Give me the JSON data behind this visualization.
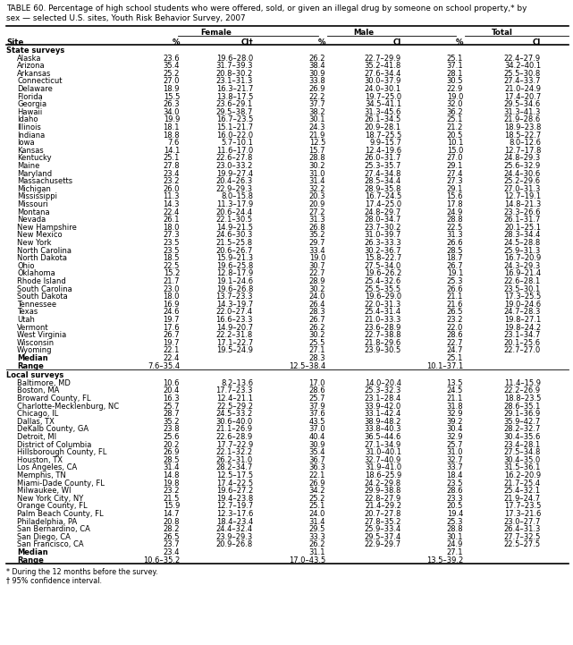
{
  "title_line1": "TABLE 60. Percentage of high school students who were offered, sold, or given an illegal drug by someone on school property,* by",
  "title_line2": "sex — selected U.S. sites, Youth Risk Behavior Survey, 2007",
  "state_data": [
    [
      "Alaska",
      "23.6",
      "19.6–28.0",
      "26.2",
      "22.7–29.9",
      "25.1",
      "22.4–27.9"
    ],
    [
      "Arizona",
      "35.4",
      "31.7–39.3",
      "38.4",
      "35.2–41.8",
      "37.1",
      "34.2–40.1"
    ],
    [
      "Arkansas",
      "25.2",
      "20.8–30.2",
      "30.9",
      "27.6–34.4",
      "28.1",
      "25.5–30.8"
    ],
    [
      "Connecticut",
      "27.0",
      "23.1–31.3",
      "33.8",
      "30.0–37.9",
      "30.5",
      "27.4–33.7"
    ],
    [
      "Delaware",
      "18.9",
      "16.3–21.7",
      "26.9",
      "24.0–30.1",
      "22.9",
      "21.0–24.9"
    ],
    [
      "Florida",
      "15.5",
      "13.8–17.5",
      "22.2",
      "19.7–25.0",
      "19.0",
      "17.4–20.7"
    ],
    [
      "Georgia",
      "26.3",
      "23.6–29.1",
      "37.7",
      "34.5–41.1",
      "32.0",
      "29.5–34.6"
    ],
    [
      "Hawaii",
      "34.0",
      "29.5–38.7",
      "38.2",
      "31.3–45.6",
      "36.2",
      "31.3–41.3"
    ],
    [
      "Idaho",
      "19.9",
      "16.7–23.5",
      "30.1",
      "26.1–34.5",
      "25.1",
      "21.9–28.6"
    ],
    [
      "Illinois",
      "18.1",
      "15.1–21.7",
      "24.3",
      "20.9–28.1",
      "21.2",
      "18.9–23.8"
    ],
    [
      "Indiana",
      "18.8",
      "16.0–22.0",
      "21.9",
      "18.7–25.5",
      "20.5",
      "18.5–22.7"
    ],
    [
      "Iowa",
      "7.6",
      "5.7–10.1",
      "12.5",
      "9.9–15.7",
      "10.1",
      "8.0–12.6"
    ],
    [
      "Kansas",
      "14.1",
      "11.6–17.0",
      "15.7",
      "12.4–19.6",
      "15.0",
      "12.7–17.8"
    ],
    [
      "Kentucky",
      "25.1",
      "22.6–27.8",
      "28.8",
      "26.0–31.7",
      "27.0",
      "24.8–29.3"
    ],
    [
      "Maine",
      "27.8",
      "23.0–33.2",
      "30.2",
      "25.3–35.7",
      "29.1",
      "25.6–32.9"
    ],
    [
      "Maryland",
      "23.4",
      "19.9–27.4",
      "31.0",
      "27.4–34.8",
      "27.4",
      "24.4–30.6"
    ],
    [
      "Massachusetts",
      "23.2",
      "20.4–26.3",
      "31.4",
      "28.5–34.4",
      "27.3",
      "25.2–29.6"
    ],
    [
      "Michigan",
      "26.0",
      "22.9–29.3",
      "32.2",
      "28.9–35.8",
      "29.1",
      "27.0–31.3"
    ],
    [
      "Mississippi",
      "11.3",
      "8.0–15.8",
      "20.3",
      "16.7–24.5",
      "15.6",
      "12.7–19.1"
    ],
    [
      "Missouri",
      "14.3",
      "11.3–17.9",
      "20.9",
      "17.4–25.0",
      "17.8",
      "14.8–21.3"
    ],
    [
      "Montana",
      "22.4",
      "20.6–24.4",
      "27.2",
      "24.8–29.7",
      "24.9",
      "23.3–26.6"
    ],
    [
      "Nevada",
      "26.1",
      "22.1–30.5",
      "31.3",
      "28.0–34.7",
      "28.8",
      "26.1–31.7"
    ],
    [
      "New Hampshire",
      "18.0",
      "14.9–21.5",
      "26.8",
      "23.7–30.2",
      "22.5",
      "20.1–25.1"
    ],
    [
      "New Mexico",
      "27.3",
      "24.6–30.3",
      "35.2",
      "31.0–39.7",
      "31.3",
      "28.3–34.4"
    ],
    [
      "New York",
      "23.5",
      "21.5–25.8",
      "29.7",
      "26.3–33.3",
      "26.6",
      "24.5–28.8"
    ],
    [
      "North Carolina",
      "23.5",
      "20.6–26.7",
      "33.4",
      "30.2–36.7",
      "28.5",
      "25.9–31.3"
    ],
    [
      "North Dakota",
      "18.5",
      "15.9–21.3",
      "19.0",
      "15.8–22.7",
      "18.7",
      "16.7–20.9"
    ],
    [
      "Ohio",
      "22.5",
      "19.6–25.8",
      "30.7",
      "27.5–34.0",
      "26.7",
      "24.3–29.3"
    ],
    [
      "Oklahoma",
      "15.2",
      "12.8–17.9",
      "22.7",
      "19.6–26.2",
      "19.1",
      "16.9–21.4"
    ],
    [
      "Rhode Island",
      "21.7",
      "19.1–24.6",
      "28.9",
      "25.4–32.6",
      "25.3",
      "22.6–28.1"
    ],
    [
      "South Carolina",
      "23.0",
      "19.6–26.8",
      "30.2",
      "25.5–35.5",
      "26.6",
      "23.5–30.1"
    ],
    [
      "South Dakota",
      "18.0",
      "13.7–23.3",
      "24.0",
      "19.6–29.0",
      "21.1",
      "17.3–25.5"
    ],
    [
      "Tennessee",
      "16.9",
      "14.3–19.7",
      "26.4",
      "22.0–31.3",
      "21.6",
      "19.0–24.6"
    ],
    [
      "Texas",
      "24.6",
      "22.0–27.4",
      "28.3",
      "25.4–31.4",
      "26.5",
      "24.7–28.3"
    ],
    [
      "Utah",
      "19.7",
      "16.6–23.3",
      "26.7",
      "21.0–33.3",
      "23.2",
      "19.8–27.1"
    ],
    [
      "Vermont",
      "17.6",
      "14.9–20.7",
      "26.2",
      "23.6–28.9",
      "22.0",
      "19.8–24.2"
    ],
    [
      "West Virginia",
      "26.7",
      "22.2–31.8",
      "30.2",
      "22.7–38.8",
      "28.6",
      "23.1–34.7"
    ],
    [
      "Wisconsin",
      "19.7",
      "17.1–22.7",
      "25.5",
      "21.8–29.6",
      "22.7",
      "20.1–25.6"
    ],
    [
      "Wyoming",
      "22.1",
      "19.5–24.9",
      "27.1",
      "23.9–30.5",
      "24.7",
      "22.7–27.0"
    ]
  ],
  "state_median": [
    "Median",
    "22.4",
    "",
    "28.3",
    "",
    "25.1",
    ""
  ],
  "state_range": [
    "Range",
    "7.6–35.4",
    "",
    "12.5–38.4",
    "",
    "10.1–37.1",
    ""
  ],
  "local_data": [
    [
      "Baltimore, MD",
      "10.6",
      "8.2–13.6",
      "17.0",
      "14.0–20.4",
      "13.5",
      "11.4–15.9"
    ],
    [
      "Boston, MA",
      "20.4",
      "17.7–23.3",
      "28.6",
      "25.3–32.3",
      "24.5",
      "22.2–26.9"
    ],
    [
      "Broward County, FL",
      "16.3",
      "12.4–21.1",
      "25.7",
      "23.1–28.4",
      "21.1",
      "18.8–23.5"
    ],
    [
      "Charlotte-Mecklenburg, NC",
      "25.7",
      "22.5–29.2",
      "37.9",
      "33.9–42.0",
      "31.8",
      "28.6–35.1"
    ],
    [
      "Chicago, IL",
      "28.7",
      "24.5–33.2",
      "37.6",
      "33.1–42.4",
      "32.9",
      "29.1–36.9"
    ],
    [
      "Dallas, TX",
      "35.2",
      "30.6–40.0",
      "43.5",
      "38.9–48.2",
      "39.2",
      "35.9–42.7"
    ],
    [
      "DeKalb County, GA",
      "23.8",
      "21.1–26.9",
      "37.0",
      "33.8–40.3",
      "30.4",
      "28.2–32.7"
    ],
    [
      "Detroit, MI",
      "25.6",
      "22.6–28.9",
      "40.4",
      "36.5–44.6",
      "32.9",
      "30.4–35.6"
    ],
    [
      "District of Columbia",
      "20.2",
      "17.7–22.9",
      "30.9",
      "27.1–34.9",
      "25.7",
      "23.4–28.1"
    ],
    [
      "Hillsborough County, FL",
      "26.9",
      "22.1–32.2",
      "35.4",
      "31.0–40.1",
      "31.0",
      "27.5–34.8"
    ],
    [
      "Houston, TX",
      "28.5",
      "26.2–31.0",
      "36.7",
      "32.7–40.9",
      "32.7",
      "30.4–35.0"
    ],
    [
      "Los Angeles, CA",
      "31.4",
      "28.2–34.7",
      "36.3",
      "31.9–41.0",
      "33.7",
      "31.5–36.1"
    ],
    [
      "Memphis, TN",
      "14.8",
      "12.5–17.5",
      "22.1",
      "18.6–25.9",
      "18.4",
      "16.2–20.9"
    ],
    [
      "Miami-Dade County, FL",
      "19.8",
      "17.4–22.5",
      "26.9",
      "24.2–29.8",
      "23.5",
      "21.7–25.4"
    ],
    [
      "Milwaukee, WI",
      "23.2",
      "19.6–27.2",
      "34.2",
      "29.9–38.8",
      "28.6",
      "25.4–32.1"
    ],
    [
      "New York City, NY",
      "21.5",
      "19.4–23.8",
      "25.2",
      "22.8–27.9",
      "23.3",
      "21.9–24.7"
    ],
    [
      "Orange County, FL",
      "15.9",
      "12.7–19.7",
      "25.1",
      "21.4–29.2",
      "20.5",
      "17.7–23.5"
    ],
    [
      "Palm Beach County, FL",
      "14.7",
      "12.3–17.6",
      "24.0",
      "20.7–27.8",
      "19.4",
      "17.3–21.6"
    ],
    [
      "Philadelphia, PA",
      "20.8",
      "18.4–23.4",
      "31.4",
      "27.8–35.2",
      "25.3",
      "23.0–27.7"
    ],
    [
      "San Bernardino, CA",
      "28.2",
      "24.4–32.4",
      "29.5",
      "25.9–33.4",
      "28.8",
      "26.4–31.3"
    ],
    [
      "San Diego, CA",
      "26.5",
      "23.9–29.3",
      "33.3",
      "29.5–37.4",
      "30.1",
      "27.7–32.5"
    ],
    [
      "San Francisco, CA",
      "23.7",
      "20.9–26.8",
      "26.2",
      "22.9–29.7",
      "24.9",
      "22.5–27.5"
    ]
  ],
  "local_median": [
    "Median",
    "23.4",
    "",
    "31.1",
    "",
    "27.1",
    ""
  ],
  "local_range": [
    "Range",
    "10.6–35.2",
    "",
    "17.0–43.5",
    "",
    "13.5–39.2",
    ""
  ],
  "footnote1": "* During the 12 months before the survey.",
  "footnote2": "† 95% confidence interval.",
  "bg_color": "#ffffff"
}
